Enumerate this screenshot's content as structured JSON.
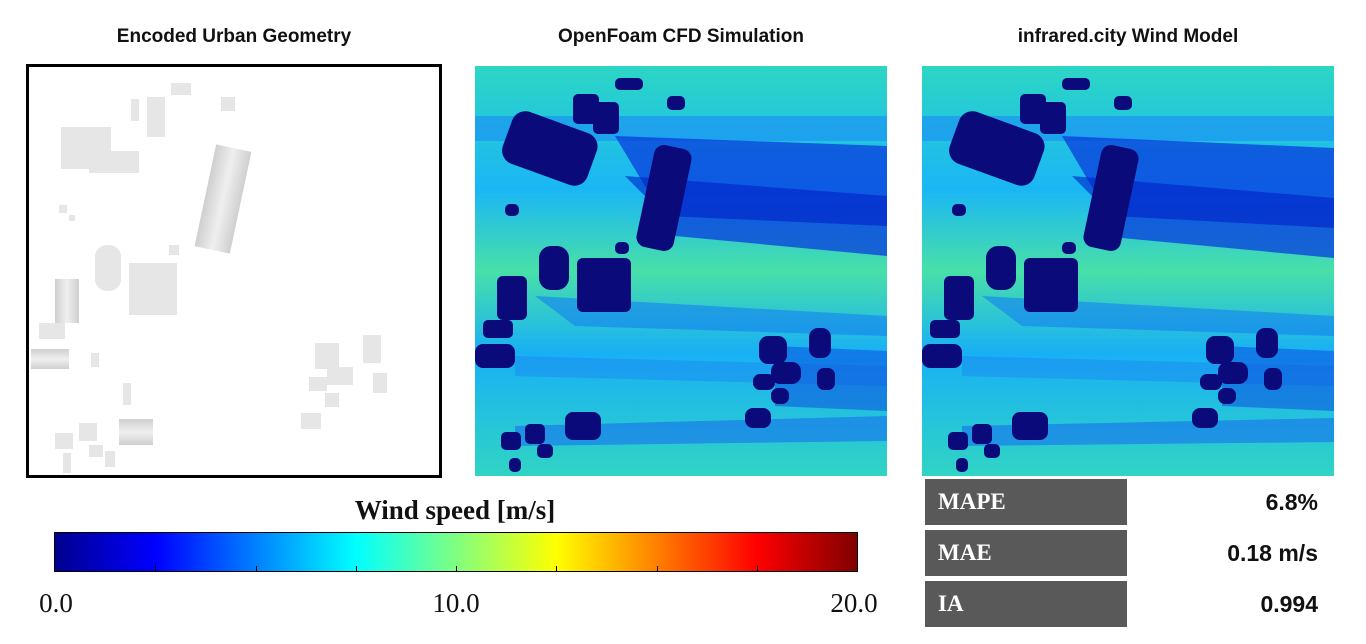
{
  "panels": {
    "geometry_title": "Encoded Urban Geometry",
    "cfd_title": "OpenFoam CFD Simulation",
    "model_title": "infrared.city Wind Model"
  },
  "colorbar": {
    "title": "Wind speed [m/s]",
    "tick_labels": [
      "0.0",
      "10.0",
      "20.0"
    ],
    "range": [
      0.0,
      20.0
    ],
    "colors": [
      "#00008f",
      "#0000ff",
      "#0080ff",
      "#00ffff",
      "#80ff80",
      "#ffff00",
      "#ff8000",
      "#ff0000",
      "#800000"
    ]
  },
  "metrics": [
    {
      "label": "MAPE",
      "value": "6.8%"
    },
    {
      "label": "MAE",
      "value": "0.18 m/s"
    },
    {
      "label": "IA",
      "value": "0.994"
    }
  ]
}
